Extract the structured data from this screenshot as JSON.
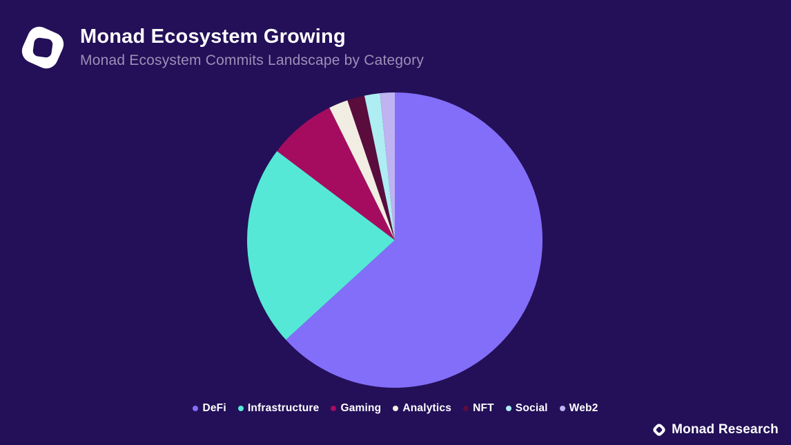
{
  "header": {
    "title": "Monad Ecosystem Growing",
    "subtitle": "Monad Ecosystem Commits Landscape by Category"
  },
  "footer": {
    "brand": "Monad Research"
  },
  "colors": {
    "background": "#231058",
    "title_text": "#FFFFFF",
    "subtitle_text": "#9B90B8",
    "legend_text": "#FFFFFF",
    "logo": "#FFFFFF"
  },
  "chart_data": {
    "type": "pie",
    "title": "Monad Ecosystem Commits Landscape by Category",
    "start_angle_deg": 0,
    "direction": "clockwise",
    "legend_position": "bottom",
    "data_labels": "none",
    "categories": [
      "DeFi",
      "Infrastructure",
      "Gaming",
      "Analytics",
      "NFT",
      "Social",
      "Web2"
    ],
    "values_percent": [
      63.2,
      22.1,
      7.4,
      2.1,
      1.9,
      1.7,
      1.6
    ],
    "colors": [
      "#836EF9",
      "#55E8D6",
      "#A50C60",
      "#F2EDE2",
      "#5A0C3D",
      "#AEEDF2",
      "#BFB3F2"
    ]
  }
}
